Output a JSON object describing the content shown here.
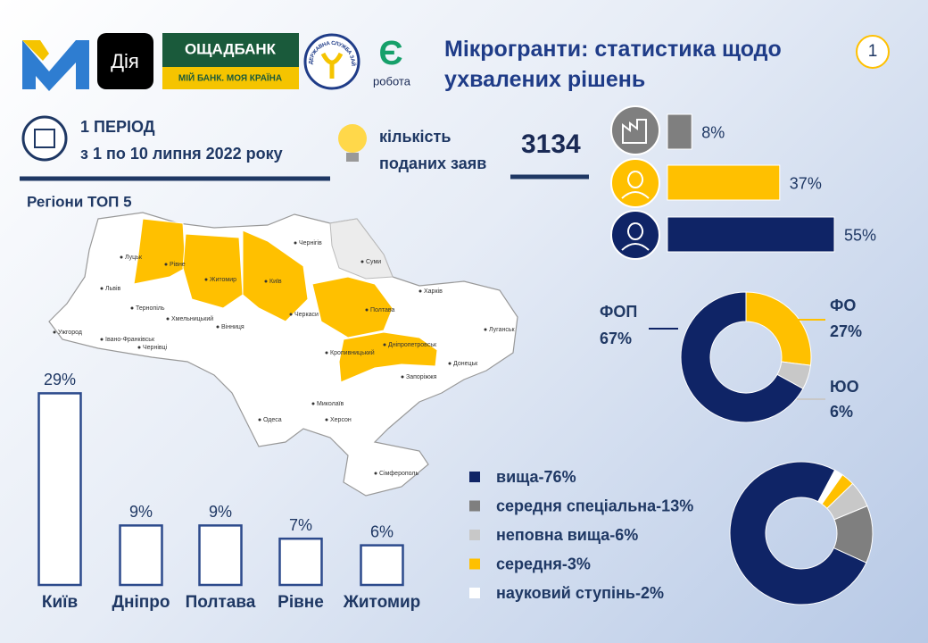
{
  "header": {
    "logos": {
      "diia": "Дія",
      "oschadbank": "ОЩАДБАНК",
      "oschadbank_slogan": "МІЙ БАНК. МОЯ КРАЇНА",
      "employment_service": "ДЕРЖАВНА СЛУЖБА ЗАЙНЯТОСТІ",
      "robota_mark": "Є",
      "robota": "робота"
    },
    "title": "Мікрогранти: статистика щодо ухвалених рішень",
    "page": "1"
  },
  "period": {
    "label": "1 ПЕРІОД",
    "dates": "з 1 по 10 липня 2022 року"
  },
  "applications": {
    "label": "кількість поданих заяв",
    "count": 3134
  },
  "map": {
    "labels": [
      "Луцьк",
      "Рівне",
      "Житомир",
      "Київ",
      "Чернігів",
      "Суми",
      "Харків",
      "Полтава",
      "Черкаси",
      "Вінниця",
      "Хмельницький",
      "Тернопіль",
      "Львів",
      "Івано-Франківськ",
      "Ужгород",
      "Чернівці",
      "Кропивницький",
      "Дніпропетровськ",
      "Донецьк",
      "Луганськ",
      "Запоріжжя",
      "Миколаїв",
      "Херсон",
      "Одеса",
      "Сімферополь"
    ]
  },
  "chart_data": [
    {
      "type": "bar",
      "orientation": "horizontal",
      "values": [
        8,
        37,
        55
      ],
      "value_labels": [
        "8%",
        "37%",
        "55%"
      ],
      "colors": [
        "#7f7f7f",
        "#ffc000",
        "#0f2466"
      ]
    },
    {
      "type": "donut",
      "categories": [
        "ФОП",
        "ФО",
        "ЮО"
      ],
      "values": [
        67,
        27,
        6
      ],
      "value_labels": [
        "67%",
        "27%",
        "6%"
      ],
      "colors": [
        "#0f2466",
        "#ffc000",
        "#c8c8c8"
      ]
    },
    {
      "type": "bar",
      "orientation": "vertical",
      "title": "Регіони ТОП 5",
      "categories": [
        "Київ",
        "Дніпро",
        "Полтава",
        "Рівне",
        "Житомир"
      ],
      "values": [
        29,
        9,
        9,
        7,
        6
      ],
      "value_labels": [
        "29%",
        "9%",
        "9%",
        "7%",
        "6%"
      ],
      "color": "#2c4a8c"
    },
    {
      "type": "donut",
      "categories": [
        "вища-76%",
        "середня спеціальна-13%",
        "неповна вища-6%",
        "середня-3%",
        "науковий ступінь-2%"
      ],
      "values": [
        76,
        13,
        6,
        3,
        2
      ],
      "colors": [
        "#0f2466",
        "#7f7f7f",
        "#c8c8c8",
        "#ffc000",
        "#ffffff"
      ]
    }
  ]
}
